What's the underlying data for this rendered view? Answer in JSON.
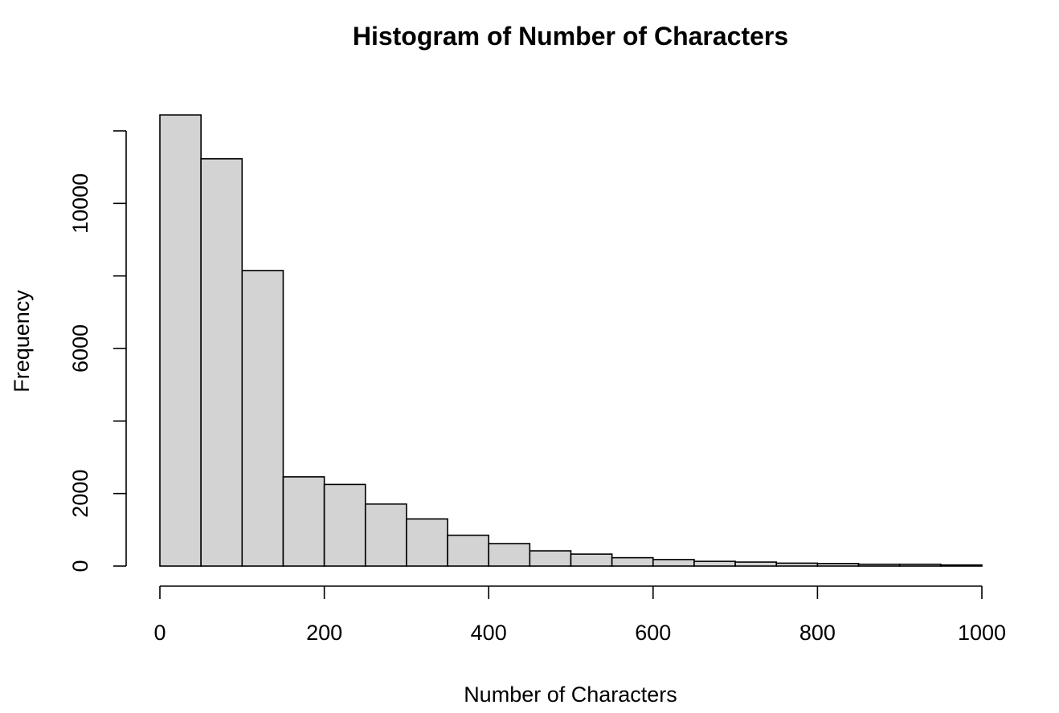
{
  "chart_data": {
    "type": "bar",
    "title": "Histogram of Number of Characters",
    "xlabel": "Number of Characters",
    "ylabel": "Frequency",
    "bin_edges": [
      0,
      50,
      100,
      150,
      200,
      250,
      300,
      350,
      400,
      450,
      500,
      550,
      600,
      650,
      700,
      750,
      800,
      850,
      900,
      950,
      1000
    ],
    "values": [
      12440,
      11230,
      8150,
      2460,
      2250,
      1710,
      1300,
      850,
      620,
      420,
      330,
      230,
      180,
      130,
      110,
      80,
      70,
      50,
      50,
      30
    ],
    "xlim": [
      0,
      1000
    ],
    "ylim": [
      0,
      12000
    ],
    "x_ticks": [
      0,
      200,
      400,
      600,
      800,
      1000
    ],
    "x_tick_labels": [
      "0",
      "200",
      "400",
      "600",
      "800",
      "1000"
    ],
    "y_ticks": [
      0,
      2000,
      4000,
      6000,
      8000,
      10000,
      12000
    ],
    "y_tick_labels": [
      "0",
      "2000",
      "",
      "6000",
      "",
      "10000",
      ""
    ],
    "bar_fill": "#d3d3d3",
    "bar_stroke": "#000000",
    "grid": false,
    "legend": "none"
  }
}
